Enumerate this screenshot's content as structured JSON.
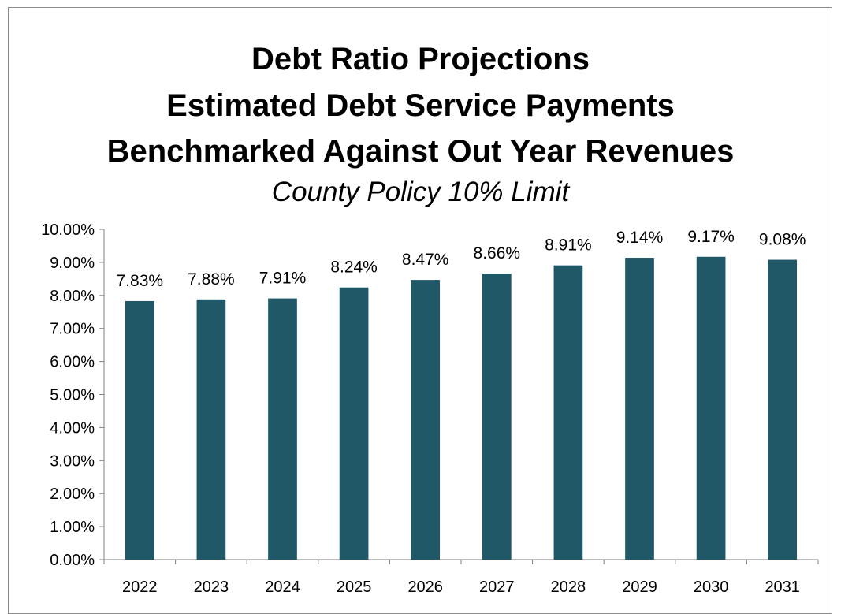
{
  "chart_data": {
    "type": "bar",
    "title_lines": [
      "Debt Ratio Projections",
      "Estimated Debt Service Payments",
      "Benchmarked Against Out Year Revenues"
    ],
    "subtitle": "County Policy 10% Limit",
    "categories": [
      "2022",
      "2023",
      "2024",
      "2025",
      "2026",
      "2027",
      "2028",
      "2029",
      "2030",
      "2031"
    ],
    "values": [
      7.83,
      7.88,
      7.91,
      8.24,
      8.47,
      8.66,
      8.91,
      9.14,
      9.17,
      9.08
    ],
    "data_labels": [
      "7.83%",
      "7.88%",
      "7.91%",
      "8.24%",
      "8.47%",
      "8.66%",
      "8.91%",
      "9.14%",
      "9.17%",
      "9.08%"
    ],
    "y_ticks": [
      "0.00%",
      "1.00%",
      "2.00%",
      "3.00%",
      "4.00%",
      "5.00%",
      "6.00%",
      "7.00%",
      "8.00%",
      "9.00%",
      "10.00%"
    ],
    "ylim": [
      0,
      10
    ],
    "xlabel": "",
    "ylabel": "",
    "grid": false,
    "legend": "none",
    "bar_color": "#215868",
    "axis_color": "#7f7f7f"
  }
}
